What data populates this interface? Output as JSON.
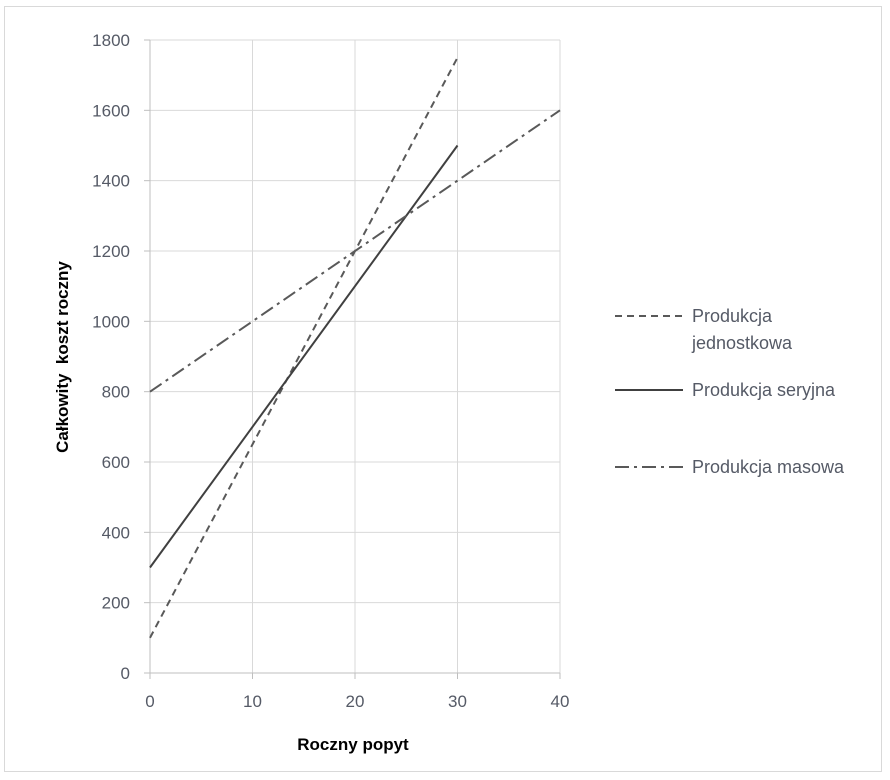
{
  "chart_data": {
    "type": "line",
    "xlabel": "Roczny popyt",
    "ylabel": "Całkowity  koszt roczny",
    "xlim": [
      0,
      40
    ],
    "ylim": [
      0,
      1800
    ],
    "x_ticks": [
      "0",
      "10",
      "20",
      "30",
      "40"
    ],
    "y_ticks": [
      "0",
      "200",
      "400",
      "600",
      "800",
      "1000",
      "1200",
      "1400",
      "1600",
      "1800"
    ],
    "grid": true,
    "legend_position": "right",
    "series": [
      {
        "name": "Produkcja jednostkowa",
        "name_lines": [
          "Produkcja",
          "jednostkowa"
        ],
        "dash": "dashed",
        "color": "#595959",
        "points": [
          [
            0,
            100
          ],
          [
            30,
            1750
          ]
        ]
      },
      {
        "name": "Produkcja seryjna",
        "name_lines": [
          "Produkcja seryjna"
        ],
        "dash": "solid",
        "color": "#404040",
        "points": [
          [
            0,
            300
          ],
          [
            30,
            1500
          ]
        ]
      },
      {
        "name": "Produkcja masowa",
        "name_lines": [
          "Produkcja masowa"
        ],
        "dash": "dashdot",
        "color": "#595959",
        "points": [
          [
            0,
            800
          ],
          [
            40,
            1600
          ]
        ]
      }
    ]
  }
}
